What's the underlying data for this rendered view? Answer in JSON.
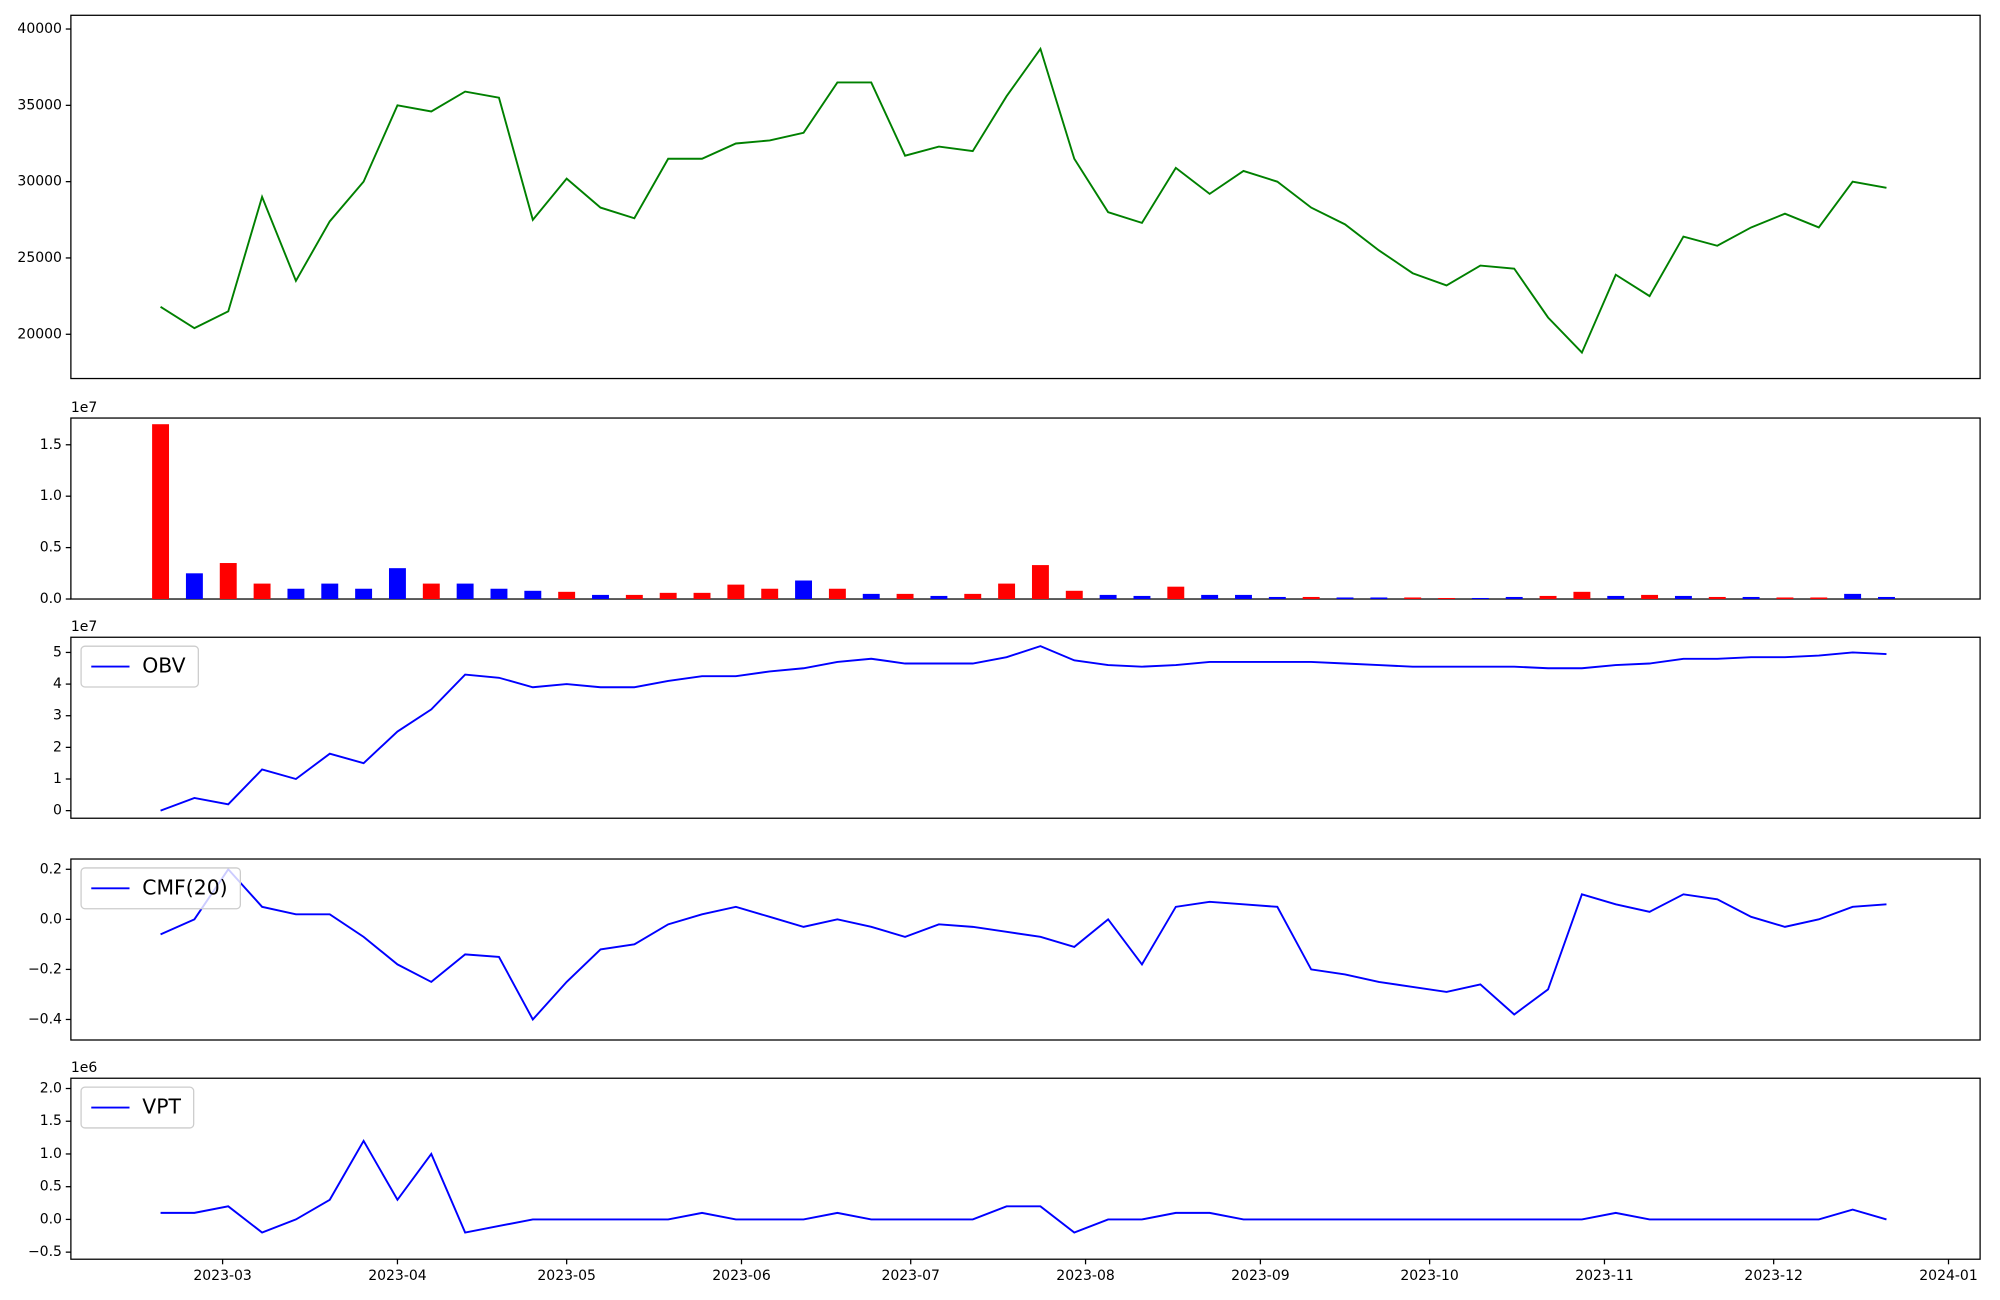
{
  "chart_data": [
    {
      "type": "line",
      "xlim": [
        32.1,
        370.6
      ],
      "ylim": [
        17100,
        40900
      ],
      "yticks": [
        20000,
        25000,
        30000,
        35000,
        40000
      ],
      "grid": false,
      "x": [
        48,
        54,
        60,
        66,
        72,
        78,
        84,
        90,
        96,
        102,
        108,
        114,
        120,
        126,
        132,
        138,
        144,
        150,
        156,
        162,
        168,
        174,
        180,
        186,
        192,
        198,
        204,
        210,
        216,
        222,
        228,
        234,
        240,
        246,
        252,
        258,
        264,
        270,
        276,
        282,
        288,
        294,
        300,
        306,
        312,
        318,
        324,
        330,
        336,
        342,
        348,
        354
      ],
      "series": [
        {
          "color": "#008000",
          "values": [
            21800,
            20400,
            21500,
            29000,
            23500,
            27400,
            30000,
            35000,
            34600,
            35900,
            35500,
            27500,
            30200,
            28300,
            27600,
            31500,
            31500,
            32500,
            32700,
            33200,
            36500,
            36500,
            31700,
            32300,
            32000,
            35600,
            38700,
            31500,
            28000,
            27300,
            30900,
            29200,
            30700,
            30000,
            28300,
            27200,
            25500,
            24000,
            23200,
            24500,
            24300,
            21100,
            18800,
            23900,
            22500,
            26400,
            25800,
            27000,
            27900,
            27000,
            30000,
            29600
          ]
        }
      ]
    },
    {
      "type": "bar",
      "xlim": [
        32.1,
        370.6
      ],
      "ylim": [
        0,
        17600000
      ],
      "y_offset_label": "1e7",
      "yticks": [
        {
          "value": 0,
          "label": "0.0"
        },
        {
          "value": 5000000,
          "label": "0.5"
        },
        {
          "value": 10000000,
          "label": "1.0"
        },
        {
          "value": 15000000,
          "label": "1.5"
        }
      ],
      "x": [
        48,
        54,
        60,
        66,
        72,
        78,
        84,
        90,
        96,
        102,
        108,
        114,
        120,
        126,
        132,
        138,
        144,
        150,
        156,
        162,
        168,
        174,
        180,
        186,
        192,
        198,
        204,
        210,
        216,
        222,
        228,
        234,
        240,
        246,
        252,
        258,
        264,
        270,
        276,
        282,
        288,
        294,
        300,
        306,
        312,
        318,
        324,
        330,
        336,
        342,
        348,
        354
      ],
      "values": [
        17000000,
        2500000,
        3500000,
        1500000,
        1000000,
        1500000,
        1000000,
        3000000,
        1500000,
        1500000,
        1000000,
        800000,
        700000,
        400000,
        400000,
        600000,
        600000,
        1400000,
        1000000,
        1800000,
        1000000,
        500000,
        500000,
        300000,
        500000,
        1500000,
        3300000,
        800000,
        400000,
        300000,
        1200000,
        400000,
        400000,
        200000,
        200000,
        150000,
        150000,
        150000,
        100000,
        100000,
        200000,
        300000,
        700000,
        300000,
        400000,
        300000,
        200000,
        200000,
        150000,
        150000,
        500000,
        200000
      ],
      "colors": [
        "#ff0000",
        "#0000ff",
        "#ff0000",
        "#ff0000",
        "#0000ff",
        "#0000ff",
        "#0000ff",
        "#0000ff",
        "#ff0000",
        "#0000ff",
        "#0000ff",
        "#0000ff",
        "#ff0000",
        "#0000ff",
        "#ff0000",
        "#ff0000",
        "#ff0000",
        "#ff0000",
        "#ff0000",
        "#0000ff",
        "#ff0000",
        "#0000ff",
        "#ff0000",
        "#0000ff",
        "#ff0000",
        "#ff0000",
        "#ff0000",
        "#ff0000",
        "#0000ff",
        "#0000ff",
        "#ff0000",
        "#0000ff",
        "#0000ff",
        "#0000ff",
        "#ff0000",
        "#0000ff",
        "#0000ff",
        "#ff0000",
        "#ff0000",
        "#0000ff",
        "#0000ff",
        "#ff0000",
        "#ff0000",
        "#0000ff",
        "#ff0000",
        "#0000ff",
        "#ff0000",
        "#0000ff",
        "#ff0000",
        "#ff0000",
        "#0000ff",
        "#0000ff"
      ]
    },
    {
      "type": "line",
      "xlim": [
        32.1,
        370.6
      ],
      "ylim": [
        -2400000,
        54800000
      ],
      "y_offset_label": "1e7",
      "legend": "upper left",
      "yticks": [
        {
          "value": 0,
          "label": "0"
        },
        {
          "value": 10000000,
          "label": "1"
        },
        {
          "value": 20000000,
          "label": "2"
        },
        {
          "value": 30000000,
          "label": "3"
        },
        {
          "value": 40000000,
          "label": "4"
        },
        {
          "value": 50000000,
          "label": "5"
        }
      ],
      "x": [
        48,
        54,
        60,
        66,
        72,
        78,
        84,
        90,
        96,
        102,
        108,
        114,
        120,
        126,
        132,
        138,
        144,
        150,
        156,
        162,
        168,
        174,
        180,
        186,
        192,
        198,
        204,
        210,
        216,
        222,
        228,
        234,
        240,
        246,
        252,
        258,
        264,
        270,
        276,
        282,
        288,
        294,
        300,
        306,
        312,
        318,
        324,
        330,
        336,
        342,
        348,
        354
      ],
      "series": [
        {
          "name": "OBV",
          "color": "#0000ff",
          "values": [
            0,
            4000000,
            2000000,
            13000000,
            10000000,
            18000000,
            15000000,
            25000000,
            32000000,
            43000000,
            42000000,
            39000000,
            40000000,
            39000000,
            39000000,
            41000000,
            42500000,
            42500000,
            44000000,
            45000000,
            47000000,
            48000000,
            46500000,
            46500000,
            46500000,
            48500000,
            52000000,
            47500000,
            46000000,
            45500000,
            46000000,
            47000000,
            47000000,
            47000000,
            47000000,
            46500000,
            46000000,
            45500000,
            45500000,
            45500000,
            45500000,
            45000000,
            45000000,
            46000000,
            46500000,
            48000000,
            48000000,
            48500000,
            48500000,
            49000000,
            50000000,
            49500000
          ]
        }
      ]
    },
    {
      "type": "line",
      "xlim": [
        32.1,
        370.6
      ],
      "ylim": [
        -0.482,
        0.241
      ],
      "legend": "upper left",
      "yticks": [
        {
          "value": -0.4,
          "label": "−0.4"
        },
        {
          "value": -0.2,
          "label": "−0.2"
        },
        {
          "value": 0,
          "label": "0.0"
        },
        0.2
      ],
      "x": [
        48,
        54,
        60,
        66,
        72,
        78,
        84,
        90,
        96,
        102,
        108,
        114,
        120,
        126,
        132,
        138,
        144,
        150,
        156,
        162,
        168,
        174,
        180,
        186,
        192,
        198,
        204,
        210,
        216,
        222,
        228,
        234,
        240,
        246,
        252,
        258,
        264,
        270,
        276,
        282,
        288,
        294,
        300,
        306,
        312,
        318,
        324,
        330,
        336,
        342,
        348,
        354
      ],
      "series": [
        {
          "name": "CMF(20)",
          "color": "#0000ff",
          "values": [
            -0.06,
            0.0,
            0.2,
            0.05,
            0.02,
            0.02,
            -0.07,
            -0.18,
            -0.25,
            -0.14,
            -0.15,
            -0.4,
            -0.25,
            -0.12,
            -0.1,
            -0.02,
            0.02,
            0.05,
            0.01,
            -0.03,
            0.0,
            -0.03,
            -0.07,
            -0.02,
            -0.03,
            -0.05,
            -0.07,
            -0.11,
            0.0,
            -0.18,
            0.05,
            0.07,
            0.06,
            0.05,
            -0.2,
            -0.22,
            -0.25,
            -0.27,
            -0.29,
            -0.26,
            -0.38,
            -0.28,
            0.1,
            0.06,
            0.03,
            0.1,
            0.08,
            0.01,
            -0.03,
            0.0,
            0.05,
            0.06
          ]
        }
      ]
    },
    {
      "type": "line",
      "xlim": [
        32.1,
        370.6
      ],
      "ylim": [
        -608000,
        2157000
      ],
      "y_offset_label": "1e6",
      "legend": "upper left",
      "yticks": [
        {
          "value": -500000,
          "label": "−0.5"
        },
        {
          "value": 0,
          "label": "0.0"
        },
        {
          "value": 500000,
          "label": "0.5"
        },
        {
          "value": 1000000,
          "label": "1.0"
        },
        {
          "value": 1500000,
          "label": "1.5"
        },
        {
          "value": 2000000,
          "label": "2.0"
        }
      ],
      "xticks": [
        {
          "value": 59,
          "label": "2023-03"
        },
        {
          "value": 90,
          "label": "2023-04"
        },
        {
          "value": 120,
          "label": "2023-05"
        },
        {
          "value": 151,
          "label": "2023-06"
        },
        {
          "value": 181,
          "label": "2023-07"
        },
        {
          "value": 212,
          "label": "2023-08"
        },
        {
          "value": 243,
          "label": "2023-09"
        },
        {
          "value": 273,
          "label": "2023-10"
        },
        {
          "value": 304,
          "label": "2023-11"
        },
        {
          "value": 334,
          "label": "2023-12"
        },
        {
          "value": 365,
          "label": "2024-01"
        }
      ],
      "x": [
        48,
        54,
        60,
        66,
        72,
        78,
        84,
        90,
        96,
        102,
        108,
        114,
        120,
        126,
        132,
        138,
        144,
        150,
        156,
        162,
        168,
        174,
        180,
        186,
        192,
        198,
        204,
        210,
        216,
        222,
        228,
        234,
        240,
        246,
        252,
        258,
        264,
        270,
        276,
        282,
        288,
        294,
        300,
        306,
        312,
        318,
        324,
        330,
        336,
        342,
        348,
        354
      ],
      "series": [
        {
          "name": "VPT",
          "color": "#0000ff",
          "values": [
            100000,
            100000,
            200000,
            -200000,
            0,
            300000,
            1200000,
            300000,
            1000000,
            -200000,
            -100000,
            0,
            0,
            0,
            0,
            0,
            100000,
            0,
            0,
            0,
            100000,
            0,
            0,
            0,
            0,
            200000,
            200000,
            -200000,
            0,
            0,
            100000,
            100000,
            0,
            0,
            0,
            0,
            0,
            0,
            0,
            0,
            0,
            0,
            0,
            100000,
            0,
            0,
            0,
            0,
            0,
            0,
            150000,
            0
          ]
        }
      ]
    }
  ]
}
